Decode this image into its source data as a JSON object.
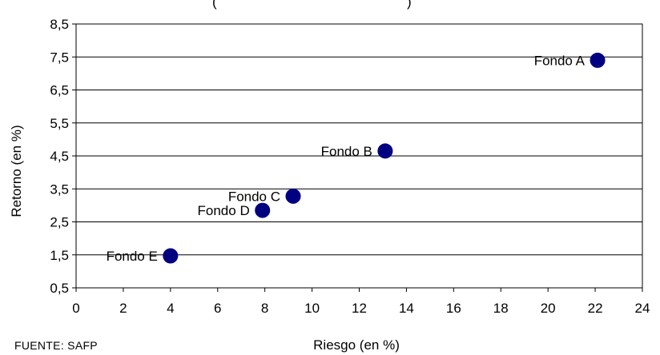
{
  "chart_data": {
    "type": "scatter",
    "title": "(",
    "title_tail": ")",
    "xlabel": "Riesgo (en %)",
    "ylabel": "Retorno (en %)",
    "xlim": [
      0,
      24
    ],
    "ylim": [
      0.5,
      8.5
    ],
    "xticks": [
      "0",
      "2",
      "4",
      "6",
      "8",
      "10",
      "12",
      "14",
      "16",
      "18",
      "20",
      "22",
      "24"
    ],
    "yticks": [
      "0,5",
      "1,5",
      "2,5",
      "3,5",
      "4,5",
      "5,5",
      "6,5",
      "7,5",
      "8,5"
    ],
    "grid": "horizontal",
    "marker_color": "#000080",
    "points": [
      {
        "label": "Fondo A",
        "x": 22.1,
        "y": 7.4
      },
      {
        "label": "Fondo B",
        "x": 13.1,
        "y": 4.65
      },
      {
        "label": "Fondo C",
        "x": 9.2,
        "y": 3.28
      },
      {
        "label": "Fondo D",
        "x": 7.9,
        "y": 2.85
      },
      {
        "label": "Fondo E",
        "x": 4.0,
        "y": 1.47
      }
    ]
  },
  "source": "FUENTE: SAFP"
}
